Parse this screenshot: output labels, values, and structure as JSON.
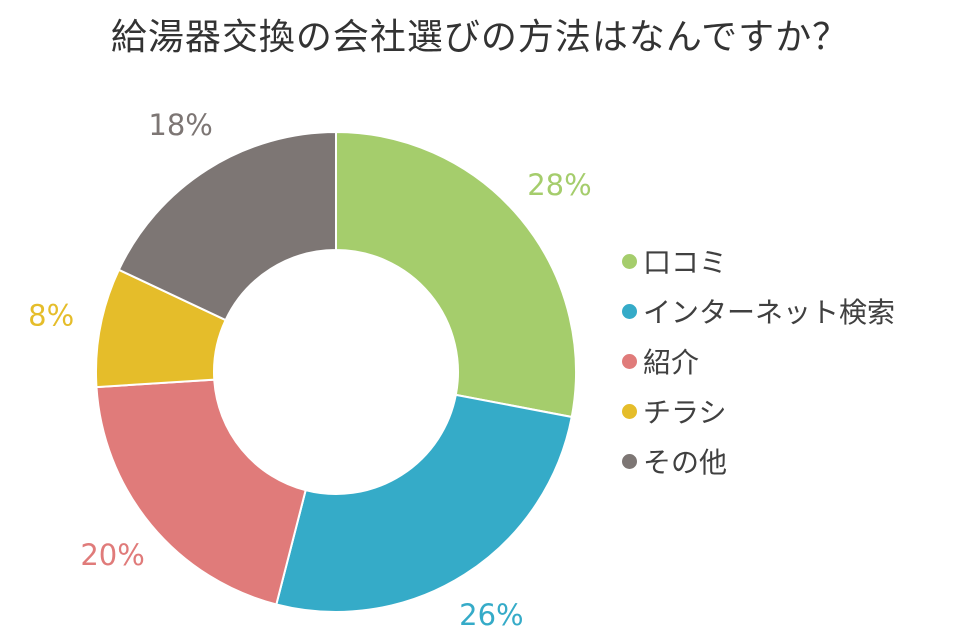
{
  "chart_data": {
    "type": "pie",
    "variant": "donut",
    "title": "給湯器交換の会社選びの方法はなんですか？",
    "categories": [
      "口コミ",
      "インターネット検索",
      "紹介",
      "チラシ",
      "その他"
    ],
    "values": [
      28,
      26,
      20,
      8,
      18
    ],
    "value_labels": [
      "28%",
      "26%",
      "20%",
      "8%",
      "18%"
    ],
    "colors": [
      "#a5cd6c",
      "#35abc8",
      "#e07b7a",
      "#e5bd2a",
      "#7d7674"
    ],
    "legend_position": "right",
    "start_angle_deg": 0,
    "direction": "clockwise"
  }
}
